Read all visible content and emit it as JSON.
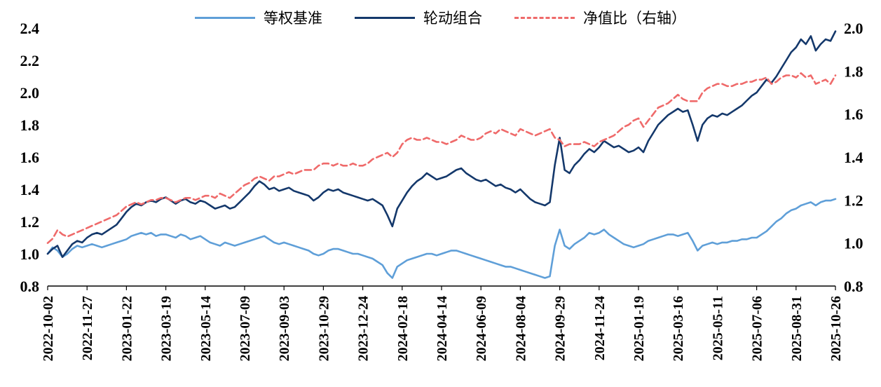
{
  "chart_data": {
    "type": "line",
    "title": "",
    "legend_position": "top",
    "grid": false,
    "x_tick_labels": [
      "2022-10-02",
      "2022-11-27",
      "2023-01-22",
      "2023-03-19",
      "2023-05-14",
      "2023-07-09",
      "2023-09-03",
      "2023-10-29",
      "2023-12-24",
      "2024-02-18",
      "2024-04-14",
      "2024-06-09",
      "2024-08-04",
      "2024-09-29",
      "2024-11-24",
      "2025-01-19",
      "2025-03-16",
      "2025-05-11",
      "2025-07-06",
      "2025-08-31",
      "2025-10-26"
    ],
    "left_axis": {
      "min": 0.8,
      "max": 2.4,
      "ticks": [
        0.8,
        1.0,
        1.2,
        1.4,
        1.6,
        1.8,
        2.0,
        2.2,
        2.4
      ]
    },
    "right_axis": {
      "min": 0.8,
      "max": 2.0,
      "ticks": [
        0.8,
        1.0,
        1.2,
        1.4,
        1.6,
        1.8,
        2.0
      ]
    },
    "series": [
      {
        "name": "等权基准",
        "axis": "left",
        "style": "solid",
        "color": "#5f9fd8",
        "values": [
          1.0,
          1.04,
          1.02,
          0.98,
          1.0,
          1.03,
          1.05,
          1.04,
          1.05,
          1.06,
          1.05,
          1.04,
          1.05,
          1.06,
          1.07,
          1.08,
          1.09,
          1.11,
          1.12,
          1.13,
          1.12,
          1.13,
          1.11,
          1.12,
          1.12,
          1.11,
          1.1,
          1.12,
          1.11,
          1.09,
          1.1,
          1.11,
          1.09,
          1.07,
          1.06,
          1.05,
          1.07,
          1.06,
          1.05,
          1.06,
          1.07,
          1.08,
          1.09,
          1.1,
          1.11,
          1.09,
          1.07,
          1.06,
          1.07,
          1.06,
          1.05,
          1.04,
          1.03,
          1.02,
          1.0,
          0.99,
          1.0,
          1.02,
          1.03,
          1.03,
          1.02,
          1.01,
          1.0,
          1.0,
          0.99,
          0.98,
          0.97,
          0.95,
          0.93,
          0.88,
          0.85,
          0.92,
          0.94,
          0.96,
          0.97,
          0.98,
          0.99,
          1.0,
          1.0,
          0.99,
          1.0,
          1.01,
          1.02,
          1.02,
          1.01,
          1.0,
          0.99,
          0.98,
          0.97,
          0.96,
          0.95,
          0.94,
          0.93,
          0.92,
          0.92,
          0.91,
          0.9,
          0.89,
          0.88,
          0.87,
          0.86,
          0.85,
          0.86,
          1.05,
          1.15,
          1.05,
          1.03,
          1.06,
          1.08,
          1.1,
          1.13,
          1.12,
          1.13,
          1.15,
          1.12,
          1.1,
          1.08,
          1.06,
          1.05,
          1.04,
          1.05,
          1.06,
          1.08,
          1.09,
          1.1,
          1.11,
          1.12,
          1.12,
          1.11,
          1.12,
          1.13,
          1.08,
          1.02,
          1.05,
          1.06,
          1.07,
          1.06,
          1.07,
          1.07,
          1.08,
          1.08,
          1.09,
          1.09,
          1.1,
          1.1,
          1.12,
          1.14,
          1.17,
          1.2,
          1.22,
          1.25,
          1.27,
          1.28,
          1.3,
          1.31,
          1.32,
          1.3,
          1.32,
          1.33,
          1.33,
          1.34
        ]
      },
      {
        "name": "轮动组合",
        "axis": "left",
        "style": "solid",
        "color": "#14386b",
        "values": [
          1.0,
          1.03,
          1.05,
          0.98,
          1.02,
          1.06,
          1.08,
          1.07,
          1.1,
          1.12,
          1.13,
          1.12,
          1.14,
          1.16,
          1.18,
          1.22,
          1.26,
          1.29,
          1.31,
          1.3,
          1.32,
          1.33,
          1.32,
          1.34,
          1.35,
          1.33,
          1.31,
          1.33,
          1.34,
          1.32,
          1.31,
          1.33,
          1.32,
          1.3,
          1.28,
          1.29,
          1.3,
          1.28,
          1.29,
          1.32,
          1.35,
          1.38,
          1.42,
          1.45,
          1.43,
          1.4,
          1.41,
          1.39,
          1.4,
          1.41,
          1.39,
          1.38,
          1.37,
          1.36,
          1.33,
          1.35,
          1.38,
          1.4,
          1.39,
          1.4,
          1.38,
          1.37,
          1.36,
          1.35,
          1.34,
          1.33,
          1.34,
          1.32,
          1.3,
          1.24,
          1.17,
          1.28,
          1.33,
          1.38,
          1.42,
          1.45,
          1.47,
          1.5,
          1.48,
          1.46,
          1.47,
          1.48,
          1.5,
          1.52,
          1.53,
          1.5,
          1.48,
          1.46,
          1.45,
          1.46,
          1.44,
          1.42,
          1.43,
          1.41,
          1.4,
          1.38,
          1.4,
          1.37,
          1.34,
          1.32,
          1.31,
          1.3,
          1.32,
          1.55,
          1.72,
          1.52,
          1.5,
          1.55,
          1.58,
          1.62,
          1.65,
          1.63,
          1.66,
          1.7,
          1.68,
          1.66,
          1.67,
          1.65,
          1.63,
          1.64,
          1.66,
          1.63,
          1.7,
          1.75,
          1.8,
          1.83,
          1.86,
          1.88,
          1.9,
          1.88,
          1.89,
          1.8,
          1.7,
          1.8,
          1.84,
          1.86,
          1.85,
          1.87,
          1.86,
          1.88,
          1.9,
          1.92,
          1.95,
          1.98,
          2.0,
          2.04,
          2.08,
          2.06,
          2.1,
          2.15,
          2.2,
          2.25,
          2.28,
          2.33,
          2.3,
          2.35,
          2.26,
          2.3,
          2.33,
          2.32,
          2.38
        ]
      },
      {
        "name": "净值比（右轴）",
        "axis": "right",
        "style": "dashed",
        "color": "#ef6a6a",
        "values": [
          1.0,
          1.02,
          1.06,
          1.04,
          1.03,
          1.04,
          1.05,
          1.06,
          1.07,
          1.08,
          1.09,
          1.1,
          1.11,
          1.12,
          1.13,
          1.15,
          1.17,
          1.18,
          1.19,
          1.18,
          1.19,
          1.2,
          1.2,
          1.21,
          1.21,
          1.2,
          1.19,
          1.2,
          1.21,
          1.21,
          1.2,
          1.21,
          1.22,
          1.22,
          1.21,
          1.23,
          1.22,
          1.21,
          1.23,
          1.25,
          1.27,
          1.28,
          1.3,
          1.31,
          1.3,
          1.29,
          1.31,
          1.31,
          1.32,
          1.33,
          1.32,
          1.33,
          1.34,
          1.34,
          1.34,
          1.36,
          1.37,
          1.37,
          1.36,
          1.37,
          1.36,
          1.36,
          1.37,
          1.36,
          1.36,
          1.37,
          1.39,
          1.4,
          1.41,
          1.42,
          1.4,
          1.42,
          1.46,
          1.48,
          1.49,
          1.48,
          1.48,
          1.49,
          1.48,
          1.47,
          1.47,
          1.46,
          1.47,
          1.48,
          1.5,
          1.49,
          1.48,
          1.48,
          1.49,
          1.51,
          1.52,
          1.51,
          1.53,
          1.52,
          1.51,
          1.5,
          1.53,
          1.52,
          1.51,
          1.5,
          1.51,
          1.52,
          1.53,
          1.49,
          1.48,
          1.45,
          1.46,
          1.46,
          1.46,
          1.47,
          1.46,
          1.45,
          1.47,
          1.48,
          1.49,
          1.5,
          1.52,
          1.54,
          1.55,
          1.57,
          1.58,
          1.54,
          1.57,
          1.6,
          1.63,
          1.64,
          1.65,
          1.67,
          1.69,
          1.67,
          1.66,
          1.66,
          1.66,
          1.7,
          1.72,
          1.73,
          1.74,
          1.74,
          1.73,
          1.73,
          1.74,
          1.74,
          1.75,
          1.75,
          1.76,
          1.76,
          1.77,
          1.74,
          1.75,
          1.77,
          1.78,
          1.78,
          1.77,
          1.79,
          1.77,
          1.78,
          1.74,
          1.75,
          1.76,
          1.74,
          1.78
        ]
      }
    ]
  }
}
